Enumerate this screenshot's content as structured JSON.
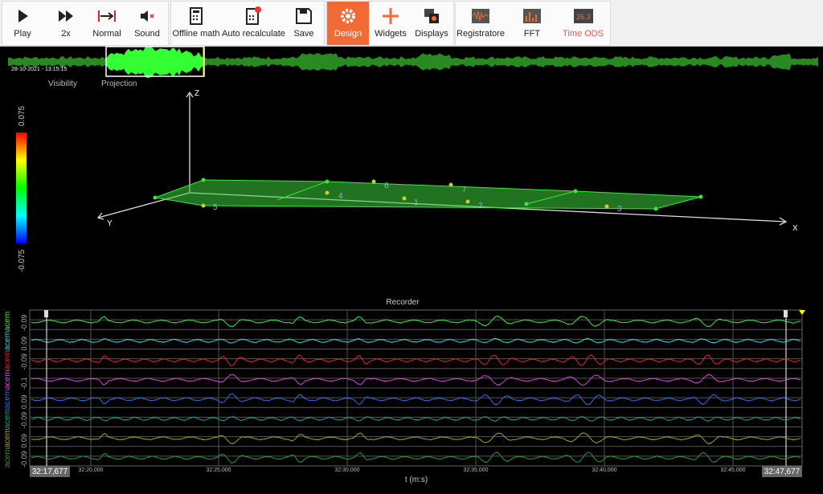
{
  "toolbar": {
    "groups": [
      {
        "buttons": [
          "Play",
          "2x",
          "Normal",
          "Sound"
        ]
      },
      {
        "buttons": [
          "Offline math",
          "Auto recalculate",
          "Save"
        ]
      },
      {
        "buttons": [
          "Design",
          "Widgets",
          "Displays"
        ]
      },
      {
        "buttons": [
          "Registratore",
          "FFT",
          "Time ODS"
        ]
      }
    ]
  },
  "overview": {
    "timestamp": "28-10-2021 - 13:15:15",
    "tabs": [
      "Visibility",
      "Projection"
    ]
  },
  "view3d": {
    "colorbar": {
      "max": "0.075",
      "min": "-0.075"
    },
    "axes": {
      "x": "X",
      "y": "Y",
      "z": "Z"
    },
    "points": [
      "1",
      "2",
      "3",
      "4",
      "5",
      "6",
      "7"
    ]
  },
  "recorder": {
    "title": "Recorder",
    "x_label": "t (m:s)",
    "start": "32:17,677",
    "end": "32:47,677",
    "ticks": [
      "32:20,000",
      "32:25,000",
      "32:30,000",
      "32:35,000",
      "32:40,000",
      "32:45,000"
    ],
    "channels": [
      {
        "name": "acem",
        "color": "#3ee83e",
        "scale": "-0.09"
      },
      {
        "name": "acem",
        "color": "#35d8e0",
        "scale": "0.09"
      },
      {
        "name": "acem",
        "color": "#e8222a",
        "scale": "-0.09"
      },
      {
        "name": "acem",
        "color": "#e040e0",
        "scale": "-0.1"
      },
      {
        "name": "acem",
        "color": "#2f6fe6",
        "scale": "0.09"
      },
      {
        "name": "acem",
        "color": "#1aa39a",
        "scale": "-0.09"
      },
      {
        "name": "acem",
        "color": "#a6a21e",
        "scale": "0.09"
      },
      {
        "name": "acem",
        "color": "#2c9a3a",
        "scale": "-0.09"
      }
    ]
  }
}
